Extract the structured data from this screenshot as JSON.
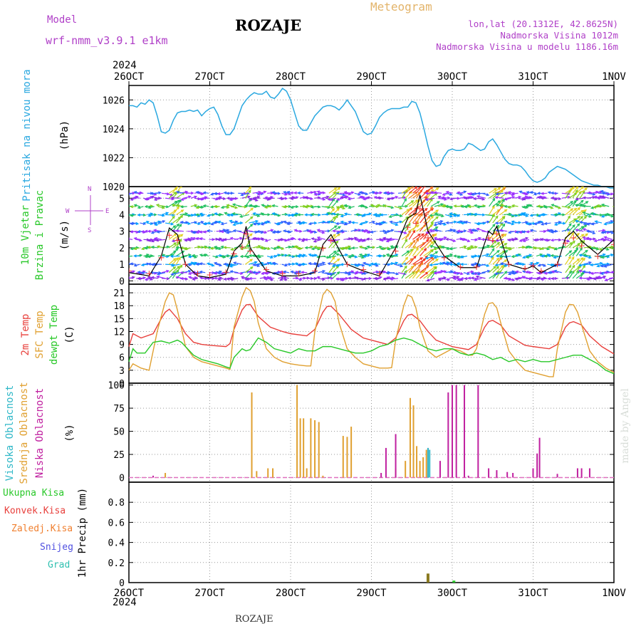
{
  "header": {
    "model_label": "Model",
    "model_name": "wrf-nmm_v3.9.1  e1km",
    "location": "ROZAJE",
    "meteogram": "Meteogram",
    "lonlat": "lon,lat (20.1312E, 42.8625N)",
    "elevation": "Nadmorska Visina 1012m",
    "model_elevation": "Nadmorska Visina u modelu 1186.16m",
    "watermark": "made by Angel",
    "footer_location": "ROZAJE"
  },
  "colors": {
    "pressure": "#2aa8e0",
    "temp2m": "#e8403c",
    "sfc": "#e0a030",
    "dew": "#28c828",
    "high_cloud": "#30b8c8",
    "mid_cloud": "#e0a030",
    "low_cloud": "#c020a0",
    "total_precip": "#28c828",
    "conv": "#e8403c",
    "freezing": "#f08030",
    "snow": "#5050e0",
    "graupel": "#30c0b0",
    "precip_bar": "#8a7a20"
  },
  "chart_data": [
    {
      "type": "line",
      "panel": "pressure",
      "ylabel": "Pritisak na nivou mora",
      "unit": "(hPa)",
      "ylim": [
        1020,
        1027
      ],
      "yticks": [
        1020,
        1022,
        1024,
        1026
      ],
      "x_days": [
        0,
        0.05,
        0.1,
        0.15,
        0.2,
        0.25,
        0.3,
        0.35,
        0.4,
        0.45,
        0.5,
        0.55,
        0.6,
        0.65,
        0.7,
        0.75,
        0.8,
        0.85,
        0.9,
        0.95,
        1.0,
        1.05,
        1.1,
        1.15,
        1.2,
        1.25,
        1.3,
        1.35,
        1.4,
        1.45,
        1.5,
        1.55,
        1.6,
        1.65,
        1.7,
        1.75,
        1.8,
        1.85,
        1.9,
        1.95,
        2.0,
        2.05,
        2.1,
        2.15,
        2.2,
        2.25,
        2.3,
        2.35,
        2.4,
        2.45,
        2.5,
        2.55,
        2.6,
        2.65,
        2.7,
        2.75,
        2.8,
        2.85,
        2.9,
        2.95,
        3.0,
        3.05,
        3.1,
        3.15,
        3.2,
        3.25,
        3.3,
        3.35,
        3.4,
        3.45,
        3.5,
        3.55,
        3.6,
        3.65,
        3.7,
        3.75,
        3.8,
        3.85,
        3.9,
        3.95,
        4.0,
        4.05,
        4.1,
        4.15,
        4.2,
        4.25,
        4.3,
        4.35,
        4.4,
        4.45,
        4.5,
        4.55,
        4.6,
        4.65,
        4.7,
        4.75,
        4.8,
        4.85,
        4.9,
        4.95,
        5.0,
        5.05,
        5.1,
        5.15,
        5.2,
        5.25,
        5.3,
        5.35,
        5.4,
        5.45,
        5.5,
        5.55,
        5.6,
        5.65,
        5.7,
        5.75,
        5.8,
        5.85,
        5.9,
        5.95,
        6.0
      ],
      "values": [
        1025.6,
        1025.6,
        1025.5,
        1025.8,
        1025.7,
        1026.0,
        1025.8,
        1024.9,
        1023.8,
        1023.7,
        1023.9,
        1024.6,
        1025.1,
        1025.2,
        1025.2,
        1025.3,
        1025.2,
        1025.3,
        1024.9,
        1025.2,
        1025.4,
        1025.5,
        1025.0,
        1024.2,
        1023.6,
        1023.6,
        1024.0,
        1024.8,
        1025.6,
        1026.0,
        1026.3,
        1026.5,
        1026.4,
        1026.4,
        1026.6,
        1026.2,
        1026.1,
        1026.4,
        1026.8,
        1026.6,
        1026.0,
        1025.1,
        1024.2,
        1023.9,
        1023.9,
        1024.4,
        1024.9,
        1025.2,
        1025.5,
        1025.6,
        1025.6,
        1025.5,
        1025.3,
        1025.6,
        1026.0,
        1025.6,
        1025.2,
        1024.5,
        1023.8,
        1023.6,
        1023.7,
        1024.2,
        1024.8,
        1025.1,
        1025.3,
        1025.4,
        1025.4,
        1025.4,
        1025.5,
        1025.5,
        1025.9,
        1025.8,
        1025.1,
        1024.0,
        1022.8,
        1021.8,
        1021.4,
        1021.5,
        1022.1,
        1022.5,
        1022.6,
        1022.5,
        1022.5,
        1022.6,
        1023.0,
        1022.9,
        1022.7,
        1022.5,
        1022.6,
        1023.1,
        1023.3,
        1022.9,
        1022.4,
        1021.9,
        1021.6,
        1021.5,
        1021.5,
        1021.4,
        1021.1,
        1020.7,
        1020.4,
        1020.3,
        1020.4,
        1020.6,
        1021.0,
        1021.2,
        1021.4,
        1021.3,
        1021.2,
        1021.0,
        1020.8,
        1020.6,
        1020.4,
        1020.3,
        1020.2,
        1020.1,
        1020.1,
        1020.0,
        1020.0,
        1019.9,
        1019.9
      ]
    },
    {
      "type": "line",
      "panel": "wind",
      "ylabel": "10m Vjetar Brzina i Pravac",
      "unit": "(m/s)",
      "ylim": [
        -0.2,
        5.7
      ],
      "yticks": [
        0,
        1,
        2,
        3,
        4,
        5
      ],
      "direction_key": {
        "w": "W",
        "e": "E",
        "n": "N",
        "s": "S"
      },
      "x_days": [
        0,
        0.25,
        0.4,
        0.5,
        0.6,
        0.7,
        0.85,
        1.0,
        1.2,
        1.3,
        1.4,
        1.45,
        1.5,
        1.7,
        1.9,
        2.1,
        2.3,
        2.4,
        2.5,
        2.7,
        2.9,
        3.1,
        3.3,
        3.45,
        3.55,
        3.6,
        3.7,
        3.9,
        4.1,
        4.3,
        4.45,
        4.5,
        4.55,
        4.7,
        4.9,
        5.0,
        5.1,
        5.3,
        5.4,
        5.5,
        5.6,
        5.8,
        6.0
      ],
      "values": [
        0.5,
        0.3,
        1.5,
        3.2,
        2.8,
        1.0,
        0.3,
        0.2,
        0.4,
        1.8,
        2.3,
        3.3,
        2.0,
        0.6,
        0.3,
        0.3,
        0.5,
        2.2,
        2.8,
        1.0,
        0.6,
        0.3,
        2.0,
        3.8,
        4.1,
        5.2,
        3.0,
        1.5,
        0.8,
        0.8,
        3.0,
        2.8,
        3.3,
        1.0,
        0.7,
        0.9,
        0.5,
        1.0,
        2.6,
        3.0,
        2.4,
        1.6,
        2.5
      ]
    },
    {
      "type": "line",
      "panel": "temperature",
      "ylabel": "2m Temp SFC Temp dewpt Temp",
      "unit": "(C)",
      "ylim": [
        0,
        23
      ],
      "yticks": [
        0,
        3,
        6,
        9,
        12,
        15,
        18,
        21
      ],
      "series": [
        {
          "name": "2m Temp",
          "x_days": [
            0,
            0.05,
            0.15,
            0.3,
            0.4,
            0.45,
            0.5,
            0.6,
            0.7,
            0.8,
            0.9,
            1.0,
            1.2,
            1.25,
            1.3,
            1.4,
            1.45,
            1.5,
            1.6,
            1.75,
            1.9,
            2.0,
            2.2,
            2.3,
            2.4,
            2.45,
            2.5,
            2.6,
            2.75,
            2.9,
            3.0,
            3.2,
            3.3,
            3.4,
            3.45,
            3.5,
            3.6,
            3.7,
            3.8,
            4.0,
            4.2,
            4.3,
            4.4,
            4.45,
            4.5,
            4.6,
            4.7,
            4.9,
            5.0,
            5.2,
            5.3,
            5.4,
            5.45,
            5.5,
            5.6,
            5.7,
            5.85,
            6.0
          ],
          "values": [
            8.5,
            11.5,
            10.5,
            11.5,
            15.0,
            16.5,
            17.2,
            15.0,
            11.5,
            9.5,
            9.0,
            8.8,
            8.5,
            9.2,
            12.5,
            17.0,
            18.2,
            18.3,
            15.5,
            13.0,
            12.0,
            11.5,
            11.0,
            12.5,
            16.5,
            17.8,
            17.9,
            16.0,
            12.5,
            10.5,
            10.0,
            9.0,
            10.5,
            14.5,
            15.8,
            16.0,
            14.5,
            12.0,
            10.0,
            8.5,
            7.8,
            9.0,
            13.0,
            14.3,
            14.6,
            13.5,
            11.0,
            8.8,
            8.5,
            8.0,
            9.0,
            13.0,
            14.0,
            14.3,
            13.5,
            11.0,
            8.5,
            6.8
          ]
        },
        {
          "name": "SFC Temp",
          "x_days": [
            0,
            0.05,
            0.15,
            0.25,
            0.35,
            0.45,
            0.5,
            0.55,
            0.6,
            0.7,
            0.8,
            0.9,
            1.0,
            1.1,
            1.2,
            1.25,
            1.3,
            1.4,
            1.45,
            1.5,
            1.55,
            1.6,
            1.7,
            1.8,
            1.9,
            2.0,
            2.1,
            2.2,
            2.25,
            2.3,
            2.4,
            2.45,
            2.5,
            2.55,
            2.6,
            2.7,
            2.8,
            2.9,
            3.0,
            3.1,
            3.2,
            3.25,
            3.3,
            3.4,
            3.45,
            3.5,
            3.55,
            3.6,
            3.7,
            3.8,
            3.9,
            4.0,
            4.1,
            4.2,
            4.25,
            4.3,
            4.4,
            4.45,
            4.5,
            4.55,
            4.6,
            4.7,
            4.8,
            4.9,
            5.0,
            5.1,
            5.2,
            5.25,
            5.3,
            5.4,
            5.45,
            5.5,
            5.55,
            5.6,
            5.7,
            5.8,
            5.9,
            6.0
          ],
          "values": [
            3.0,
            4.5,
            3.5,
            3.0,
            12.0,
            19.0,
            21.0,
            20.5,
            17.0,
            8.5,
            6.0,
            5.0,
            4.5,
            4.0,
            3.5,
            3.2,
            13.0,
            20.0,
            22.2,
            21.5,
            19.0,
            14.0,
            8.0,
            6.0,
            5.0,
            4.5,
            4.2,
            4.0,
            4.0,
            12.0,
            20.5,
            21.8,
            21.0,
            19.0,
            14.0,
            8.0,
            6.0,
            4.5,
            4.0,
            3.5,
            3.5,
            3.6,
            10.0,
            18.0,
            20.5,
            20.0,
            17.5,
            13.0,
            7.5,
            6.0,
            7.0,
            8.0,
            7.5,
            6.5,
            6.5,
            8.0,
            16.0,
            18.5,
            18.7,
            17.5,
            14.0,
            7.5,
            5.0,
            3.0,
            2.5,
            2.0,
            1.5,
            1.5,
            8.0,
            16.5,
            18.3,
            18.2,
            16.5,
            13.5,
            7.5,
            5.0,
            3.5,
            2.5
          ]
        },
        {
          "name": "dewpt Temp",
          "x_days": [
            0,
            0.05,
            0.1,
            0.2,
            0.3,
            0.4,
            0.5,
            0.6,
            0.65,
            0.7,
            0.8,
            0.9,
            1.0,
            1.1,
            1.2,
            1.25,
            1.3,
            1.4,
            1.45,
            1.5,
            1.6,
            1.7,
            1.8,
            1.9,
            2.0,
            2.1,
            2.2,
            2.3,
            2.4,
            2.5,
            2.6,
            2.7,
            2.8,
            2.9,
            3.0,
            3.1,
            3.2,
            3.3,
            3.4,
            3.5,
            3.6,
            3.7,
            3.8,
            3.9,
            4.0,
            4.1,
            4.2,
            4.3,
            4.4,
            4.5,
            4.6,
            4.7,
            4.8,
            4.9,
            5.0,
            5.1,
            5.2,
            5.3,
            5.4,
            5.5,
            5.6,
            5.7,
            5.8,
            5.9,
            6.0
          ],
          "values": [
            5.0,
            8.0,
            7.0,
            7.0,
            9.5,
            9.8,
            9.3,
            10.0,
            9.5,
            8.5,
            6.5,
            5.5,
            5.0,
            4.5,
            3.8,
            3.5,
            6.0,
            8.0,
            7.5,
            7.8,
            10.5,
            9.5,
            8.0,
            7.5,
            7.0,
            8.0,
            7.5,
            7.5,
            8.5,
            8.5,
            8.0,
            7.5,
            7.0,
            7.0,
            7.5,
            8.5,
            9.0,
            10.0,
            10.5,
            10.0,
            9.0,
            8.0,
            7.5,
            8.0,
            8.0,
            7.0,
            6.5,
            7.0,
            6.5,
            5.5,
            6.0,
            5.0,
            5.5,
            5.0,
            5.5,
            5.0,
            5.0,
            5.5,
            6.0,
            6.5,
            6.5,
            5.5,
            4.5,
            3.0,
            2.2
          ]
        }
      ]
    },
    {
      "type": "bar",
      "panel": "cloud",
      "ylabel": "Visoka Oblacnost Srednja Oblacnost Niska Oblacnost",
      "unit": "(%)",
      "ylim": [
        -5,
        102
      ],
      "yticks": [
        0,
        25,
        50,
        75,
        100
      ],
      "series": [
        {
          "name": "Srednja Oblacnost",
          "x_days": [
            0.45,
            1.52,
            1.58,
            1.72,
            1.78,
            2.08,
            2.12,
            2.16,
            2.2,
            2.25,
            2.3,
            2.35,
            2.4,
            2.65,
            2.7,
            2.75,
            3.3,
            3.42,
            3.48,
            3.52,
            3.56,
            3.6,
            3.64,
            3.68
          ],
          "values": [
            5,
            92,
            7,
            10,
            10,
            100,
            64,
            64,
            10,
            64,
            62,
            60,
            2,
            45,
            44,
            55,
            10,
            18,
            86,
            78,
            34,
            18,
            22,
            30
          ]
        },
        {
          "name": "Niska Oblacnost",
          "x_days": [
            0.3,
            3.12,
            3.18,
            3.3,
            3.7,
            3.85,
            3.95,
            4.0,
            4.05,
            4.15,
            4.2,
            4.32,
            4.45,
            4.55,
            4.68,
            4.75,
            5.0,
            5.05,
            5.08,
            5.3,
            5.55,
            5.6,
            5.7
          ],
          "values": [
            2,
            5,
            32,
            47,
            32,
            18,
            92,
            100,
            100,
            100,
            2,
            100,
            10,
            8,
            6,
            5,
            10,
            26,
            43,
            4,
            10,
            10,
            10
          ]
        },
        {
          "name": "Visoka Oblacnost",
          "x_days": [
            3.7,
            3.72
          ],
          "values": [
            32,
            30
          ]
        }
      ]
    },
    {
      "type": "bar",
      "panel": "precip",
      "ylabel": "1hr Precip",
      "unit": "(mm)",
      "ylim": [
        0,
        1.0
      ],
      "yticks": [
        0,
        0.2,
        0.4,
        0.6,
        0.8
      ],
      "legend": [
        "Ukupna Kisa",
        "Konvek.Kisa",
        "Zaledj.Kisa",
        "Snijeg",
        "Grad"
      ],
      "x_days": [
        3.7,
        4.02
      ],
      "values": [
        0.09,
        0.02
      ]
    }
  ],
  "axis": {
    "year": "2024",
    "days": [
      "26OCT",
      "27OCT",
      "28OCT",
      "29OCT",
      "30OCT",
      "31OCT",
      "1NOV"
    ]
  }
}
